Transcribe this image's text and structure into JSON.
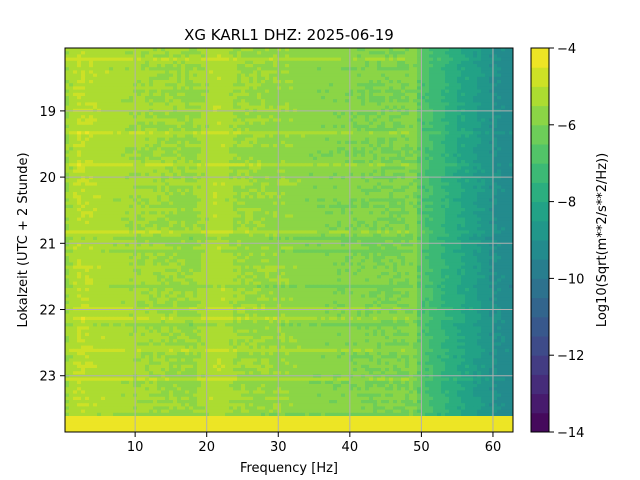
{
  "chart_data": {
    "type": "heatmap",
    "title": "XG KARL1  DHZ: 2025-06-19",
    "xlabel": "Frequency [Hz]",
    "ylabel": "Lokalzeit (UTC + 2 Stunde)",
    "colorbar_label": "Log10(Sqrt(m**2/s**2/Hz))",
    "colormap": "viridis",
    "xlim": [
      0.2,
      62.8
    ],
    "ylim": [
      18.05,
      23.85
    ],
    "y_inverted": true,
    "clim": [
      -14,
      -4
    ],
    "x_ticks": [
      10,
      20,
      30,
      40,
      50,
      60
    ],
    "y_ticks": [
      19,
      20,
      21,
      22,
      23
    ],
    "colorbar_ticks": [
      -4,
      -6,
      -8,
      -10,
      -12,
      -14
    ],
    "colorbar_levels": 20,
    "grid": true,
    "spectral_profile": {
      "frequency_hz": [
        0.2,
        2,
        5,
        10,
        15,
        18,
        20,
        22,
        24,
        30,
        35,
        40,
        45,
        48,
        49,
        50,
        52,
        55,
        58,
        60,
        62.8
      ],
      "log10_amplitude": [
        -5.6,
        -5.0,
        -5.2,
        -5.4,
        -5.5,
        -5.6,
        -5.3,
        -5.1,
        -5.5,
        -5.6,
        -5.8,
        -5.9,
        -6.0,
        -6.0,
        -5.8,
        -6.8,
        -7.2,
        -7.9,
        -8.5,
        -9.0,
        -9.3
      ]
    },
    "saturated_band_after_hour": 23.6,
    "saturated_value": -4.0
  },
  "colors": {
    "grid": "#b0b0b0",
    "axes": "#000000"
  }
}
